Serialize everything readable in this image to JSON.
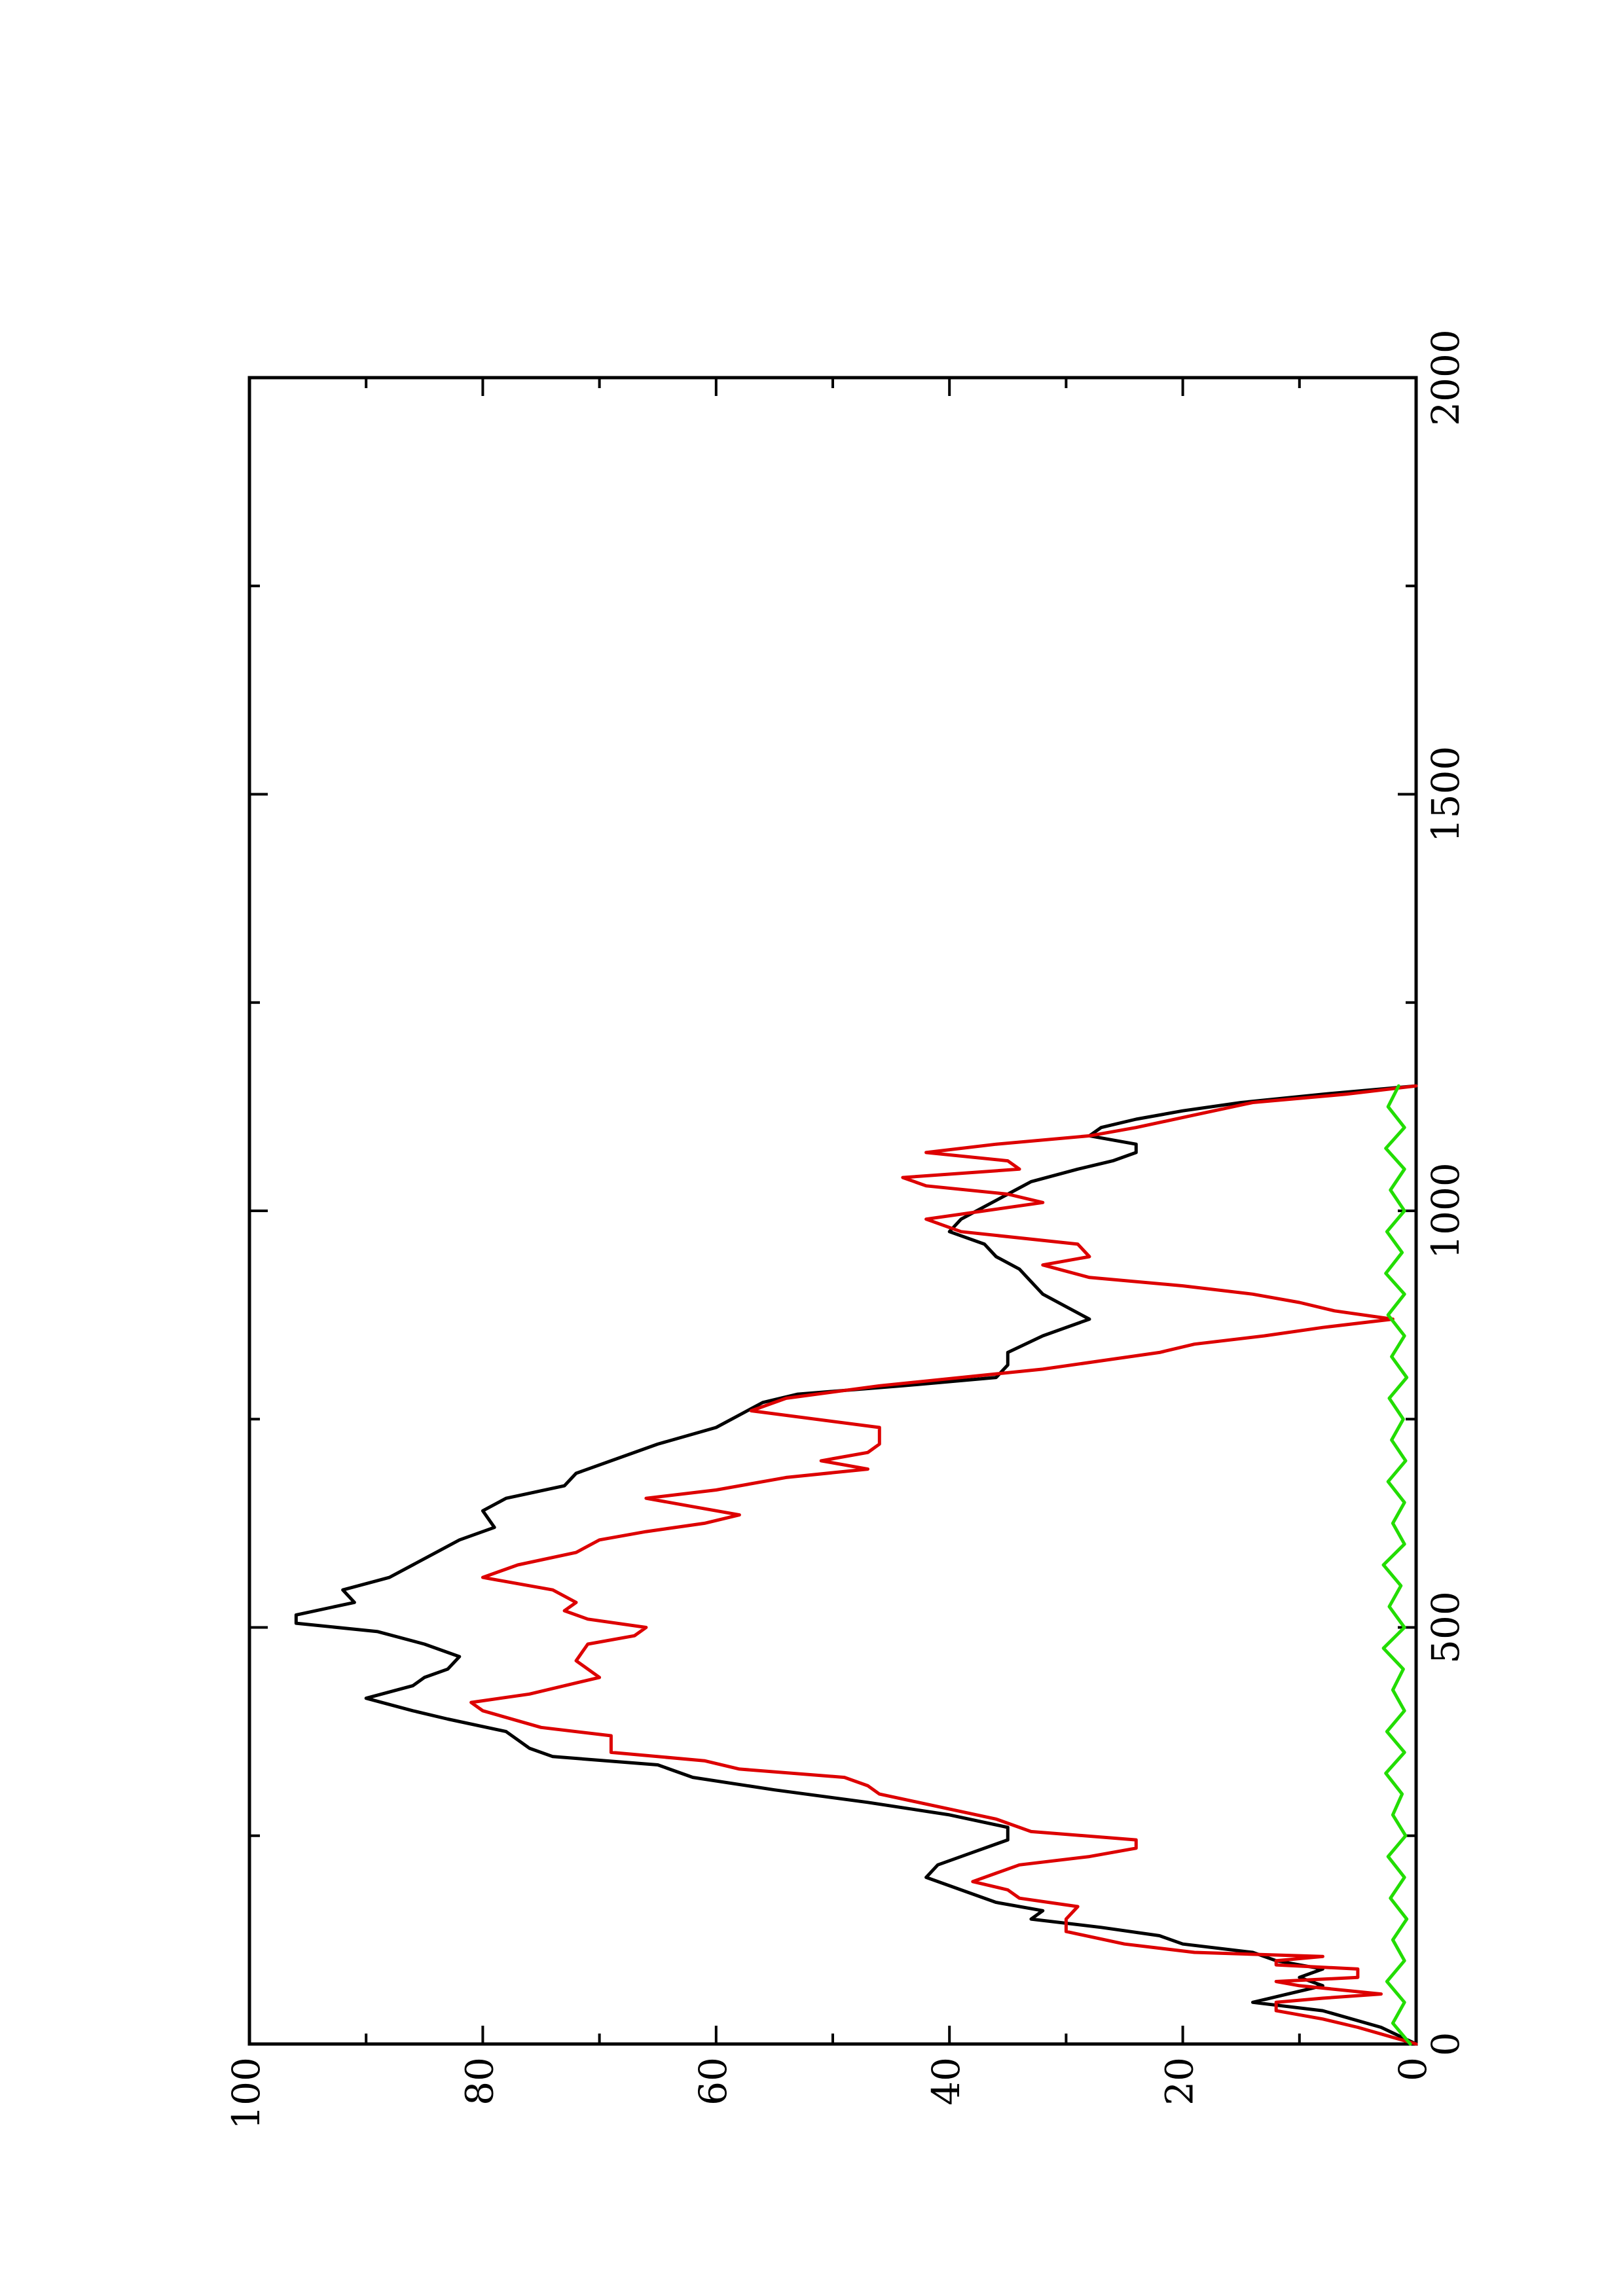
{
  "chart_data": {
    "type": "line",
    "orientation": "rotated-90-counterclockwise",
    "title": "",
    "xlabel": "",
    "ylabel": "",
    "xlim": [
      0,
      2000
    ],
    "ylim": [
      0,
      100
    ],
    "x_ticks_major": [
      0,
      500,
      1000,
      1500,
      2000
    ],
    "x_ticks_minor": [
      250,
      750,
      1250,
      1750
    ],
    "y_ticks_major": [
      0,
      20,
      40,
      60,
      80,
      100
    ],
    "y_ticks_minor": [
      10,
      30,
      50,
      70,
      90
    ],
    "x_tick_labels": [
      "0",
      "500",
      "1000",
      "1500",
      "2000"
    ],
    "y_tick_labels": [
      "0",
      "20",
      "40",
      "60",
      "80",
      "100"
    ],
    "grid": false,
    "legend": "none",
    "series": [
      {
        "color": "#000000",
        "points": [
          [
            0,
            0
          ],
          [
            20,
            3
          ],
          [
            40,
            8
          ],
          [
            50,
            14
          ],
          [
            60,
            11
          ],
          [
            70,
            8
          ],
          [
            80,
            10
          ],
          [
            90,
            8
          ],
          [
            100,
            12
          ],
          [
            110,
            14
          ],
          [
            120,
            20
          ],
          [
            130,
            22
          ],
          [
            140,
            27
          ],
          [
            150,
            33
          ],
          [
            160,
            32
          ],
          [
            170,
            36
          ],
          [
            180,
            38
          ],
          [
            190,
            40
          ],
          [
            200,
            42
          ],
          [
            215,
            41
          ],
          [
            230,
            38
          ],
          [
            245,
            35
          ],
          [
            260,
            35
          ],
          [
            275,
            40
          ],
          [
            290,
            47
          ],
          [
            305,
            55
          ],
          [
            320,
            62
          ],
          [
            335,
            65
          ],
          [
            345,
            74
          ],
          [
            355,
            76
          ],
          [
            365,
            77
          ],
          [
            375,
            78
          ],
          [
            390,
            83
          ],
          [
            400,
            86
          ],
          [
            415,
            90
          ],
          [
            430,
            86
          ],
          [
            440,
            85
          ],
          [
            450,
            83
          ],
          [
            465,
            82
          ],
          [
            480,
            85
          ],
          [
            495,
            89
          ],
          [
            505,
            96
          ],
          [
            515,
            96
          ],
          [
            530,
            91
          ],
          [
            545,
            92
          ],
          [
            560,
            88
          ],
          [
            575,
            86
          ],
          [
            590,
            84
          ],
          [
            605,
            82
          ],
          [
            620,
            79
          ],
          [
            640,
            80
          ],
          [
            655,
            78
          ],
          [
            670,
            73
          ],
          [
            685,
            72
          ],
          [
            700,
            69
          ],
          [
            720,
            65
          ],
          [
            740,
            60
          ],
          [
            755,
            58
          ],
          [
            770,
            56
          ],
          [
            780,
            53
          ],
          [
            790,
            44
          ],
          [
            800,
            36
          ],
          [
            815,
            35
          ],
          [
            830,
            35
          ],
          [
            850,
            32
          ],
          [
            870,
            28
          ],
          [
            885,
            30
          ],
          [
            900,
            32
          ],
          [
            915,
            33
          ],
          [
            930,
            34
          ],
          [
            945,
            36
          ],
          [
            960,
            37
          ],
          [
            975,
            40
          ],
          [
            990,
            39
          ],
          [
            1005,
            37
          ],
          [
            1020,
            35
          ],
          [
            1035,
            33
          ],
          [
            1050,
            29
          ],
          [
            1060,
            26
          ],
          [
            1070,
            24
          ],
          [
            1080,
            24
          ],
          [
            1090,
            28
          ],
          [
            1100,
            27
          ],
          [
            1110,
            24
          ],
          [
            1120,
            20
          ],
          [
            1130,
            15
          ],
          [
            1140,
            8
          ],
          [
            1150,
            0
          ]
        ]
      },
      {
        "color": "#dd0000",
        "points": [
          [
            0,
            0
          ],
          [
            20,
            5
          ],
          [
            30,
            8
          ],
          [
            40,
            12
          ],
          [
            50,
            12
          ],
          [
            55,
            8
          ],
          [
            60,
            3
          ],
          [
            70,
            10
          ],
          [
            75,
            12
          ],
          [
            80,
            5
          ],
          [
            90,
            5
          ],
          [
            95,
            12
          ],
          [
            100,
            12
          ],
          [
            105,
            8
          ],
          [
            110,
            19
          ],
          [
            120,
            25
          ],
          [
            135,
            30
          ],
          [
            150,
            30
          ],
          [
            165,
            29
          ],
          [
            175,
            34
          ],
          [
            185,
            35
          ],
          [
            195,
            38
          ],
          [
            205,
            36
          ],
          [
            215,
            34
          ],
          [
            225,
            28
          ],
          [
            235,
            24
          ],
          [
            245,
            24
          ],
          [
            255,
            33
          ],
          [
            270,
            36
          ],
          [
            285,
            41
          ],
          [
            300,
            46
          ],
          [
            310,
            47
          ],
          [
            320,
            49
          ],
          [
            330,
            58
          ],
          [
            340,
            61
          ],
          [
            350,
            69
          ],
          [
            360,
            69
          ],
          [
            370,
            69
          ],
          [
            380,
            75
          ],
          [
            400,
            80
          ],
          [
            410,
            81
          ],
          [
            420,
            76
          ],
          [
            440,
            70
          ],
          [
            460,
            72
          ],
          [
            480,
            71
          ],
          [
            490,
            67
          ],
          [
            500,
            66
          ],
          [
            510,
            71
          ],
          [
            520,
            73
          ],
          [
            530,
            72
          ],
          [
            545,
            74
          ],
          [
            560,
            80
          ],
          [
            575,
            77
          ],
          [
            590,
            72
          ],
          [
            605,
            70
          ],
          [
            615,
            66
          ],
          [
            625,
            61
          ],
          [
            635,
            58
          ],
          [
            645,
            62
          ],
          [
            655,
            66
          ],
          [
            665,
            60
          ],
          [
            680,
            54
          ],
          [
            690,
            47
          ],
          [
            700,
            51
          ],
          [
            710,
            47
          ],
          [
            720,
            46
          ],
          [
            740,
            46
          ],
          [
            760,
            57
          ],
          [
            775,
            54
          ],
          [
            790,
            46
          ],
          [
            810,
            32
          ],
          [
            820,
            27
          ],
          [
            830,
            22
          ],
          [
            840,
            19
          ],
          [
            850,
            13
          ],
          [
            860,
            8
          ],
          [
            870,
            2
          ],
          [
            880,
            7
          ],
          [
            890,
            10
          ],
          [
            900,
            14
          ],
          [
            910,
            20
          ],
          [
            920,
            28
          ],
          [
            935,
            32
          ],
          [
            945,
            28
          ],
          [
            960,
            29
          ],
          [
            975,
            39
          ],
          [
            990,
            42
          ],
          [
            1000,
            37
          ],
          [
            1010,
            32
          ],
          [
            1020,
            35
          ],
          [
            1030,
            42
          ],
          [
            1040,
            44
          ],
          [
            1050,
            34
          ],
          [
            1060,
            35
          ],
          [
            1070,
            42
          ],
          [
            1080,
            36
          ],
          [
            1090,
            28
          ],
          [
            1100,
            24
          ],
          [
            1115,
            19
          ],
          [
            1130,
            14
          ],
          [
            1140,
            6
          ],
          [
            1150,
            0
          ]
        ]
      },
      {
        "color": "#22dd00",
        "points": [
          [
            0,
            0.5
          ],
          [
            25,
            2
          ],
          [
            50,
            1
          ],
          [
            75,
            2.5
          ],
          [
            100,
            1
          ],
          [
            125,
            2
          ],
          [
            150,
            0.8
          ],
          [
            175,
            2.2
          ],
          [
            200,
            1
          ],
          [
            225,
            2.4
          ],
          [
            250,
            0.9
          ],
          [
            275,
            2
          ],
          [
            300,
            1.2
          ],
          [
            325,
            2.6
          ],
          [
            350,
            1
          ],
          [
            375,
            2.5
          ],
          [
            400,
            1
          ],
          [
            425,
            2
          ],
          [
            450,
            1.1
          ],
          [
            475,
            2.8
          ],
          [
            500,
            1
          ],
          [
            525,
            2.3
          ],
          [
            550,
            1.3
          ],
          [
            575,
            2.8
          ],
          [
            600,
            1
          ],
          [
            625,
            2
          ],
          [
            650,
            1
          ],
          [
            675,
            2.4
          ],
          [
            700,
            0.9
          ],
          [
            725,
            2.1
          ],
          [
            750,
            1.1
          ],
          [
            775,
            2.3
          ],
          [
            800,
            0.8
          ],
          [
            825,
            2.1
          ],
          [
            850,
            1
          ],
          [
            875,
            2.4
          ],
          [
            900,
            1
          ],
          [
            925,
            2.6
          ],
          [
            950,
            1.2
          ],
          [
            975,
            2.5
          ],
          [
            1000,
            1
          ],
          [
            1025,
            2.2
          ],
          [
            1050,
            1
          ],
          [
            1075,
            2.6
          ],
          [
            1100,
            1
          ],
          [
            1125,
            2.4
          ],
          [
            1150,
            1.5
          ]
        ]
      }
    ]
  }
}
